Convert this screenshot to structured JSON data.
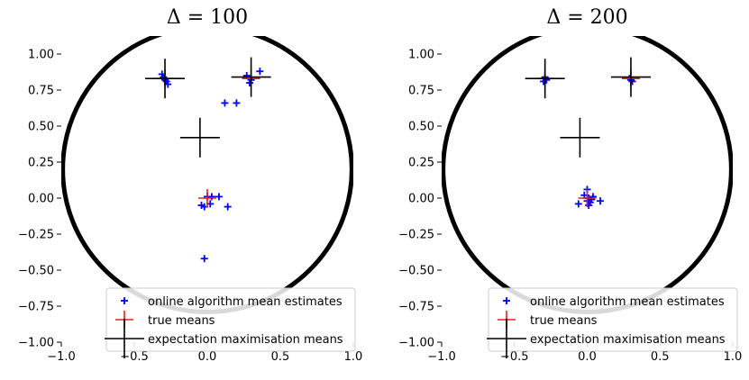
{
  "chart_data": [
    {
      "type": "scatter",
      "title": "Δ = 100",
      "xlabel": "",
      "ylabel": "",
      "xlim": [
        -1.0,
        1.0
      ],
      "ylim": [
        -1.0,
        1.0
      ],
      "xticks": [
        "−1.0",
        "−0.5",
        "0.0",
        "0.5",
        "1.0"
      ],
      "yticks": [
        "1.00",
        "0.75",
        "0.50",
        "0.25",
        "0.00",
        "−0.25",
        "−0.50",
        "−0.75",
        "−1.00"
      ],
      "grid": false,
      "legend_position": "lower-right",
      "circle": {
        "cx": 0,
        "cy": 0.2,
        "r": 0.99
      },
      "series": [
        {
          "name": "online algorithm mean estimates",
          "marker": "+",
          "color": "#0000ff",
          "points": [
            [
              -0.31,
              0.86
            ],
            [
              -0.29,
              0.82
            ],
            [
              -0.27,
              0.79
            ],
            [
              -0.3,
              0.84
            ],
            [
              -0.28,
              0.81
            ],
            [
              0.27,
              0.85
            ],
            [
              0.3,
              0.82
            ],
            [
              0.36,
              0.88
            ],
            [
              0.29,
              0.8
            ],
            [
              0.12,
              0.66
            ],
            [
              0.2,
              0.66
            ],
            [
              0.0,
              0.01
            ],
            [
              0.03,
              0.01
            ],
            [
              0.08,
              0.01
            ],
            [
              0.02,
              -0.04
            ],
            [
              -0.04,
              -0.05
            ],
            [
              -0.02,
              -0.06
            ],
            [
              0.14,
              -0.06
            ],
            [
              -0.02,
              -0.42
            ]
          ]
        },
        {
          "name": "true means",
          "marker": "+",
          "color": "#e0201b",
          "points": [
            [
              -0.29,
              0.83
            ],
            [
              0.3,
              0.83
            ],
            [
              0.0,
              0.0
            ]
          ]
        },
        {
          "name": "expectation maximisation means",
          "marker": "+",
          "color": "#000000",
          "points": [
            [
              -0.29,
              0.83
            ],
            [
              0.3,
              0.84
            ],
            [
              -0.05,
              0.42
            ]
          ]
        }
      ]
    },
    {
      "type": "scatter",
      "title": "Δ = 200",
      "xlabel": "",
      "ylabel": "",
      "xlim": [
        -1.0,
        1.0
      ],
      "ylim": [
        -1.0,
        1.0
      ],
      "xticks": [
        "−1.0",
        "−0.5",
        "0.0",
        "0.5",
        "1.0"
      ],
      "yticks": [
        "1.00",
        "0.75",
        "0.50",
        "0.25",
        "0.00",
        "−0.25",
        "−0.50",
        "−0.75",
        "−1.00"
      ],
      "grid": false,
      "legend_position": "lower-right",
      "circle": {
        "cx": 0,
        "cy": 0.2,
        "r": 0.99
      },
      "series": [
        {
          "name": "online algorithm mean estimates",
          "marker": "+",
          "color": "#0000ff",
          "points": [
            [
              -0.29,
              0.84
            ],
            [
              -0.3,
              0.81
            ],
            [
              -0.28,
              0.82
            ],
            [
              0.29,
              0.83
            ],
            [
              0.31,
              0.81
            ],
            [
              0.3,
              0.82
            ],
            [
              0.0,
              0.06
            ],
            [
              -0.02,
              0.02
            ],
            [
              0.01,
              0.0
            ],
            [
              0.03,
              -0.01
            ],
            [
              0.0,
              -0.02
            ],
            [
              0.02,
              -0.03
            ],
            [
              -0.06,
              -0.04
            ],
            [
              0.09,
              -0.02
            ],
            [
              0.01,
              -0.05
            ],
            [
              0.04,
              0.01
            ]
          ]
        },
        {
          "name": "true means",
          "marker": "+",
          "color": "#e0201b",
          "points": [
            [
              -0.29,
              0.83
            ],
            [
              0.3,
              0.83
            ],
            [
              0.0,
              0.0
            ]
          ]
        },
        {
          "name": "expectation maximisation means",
          "marker": "+",
          "color": "#000000",
          "points": [
            [
              -0.29,
              0.83
            ],
            [
              0.3,
              0.84
            ],
            [
              -0.05,
              0.42
            ]
          ]
        }
      ]
    }
  ]
}
